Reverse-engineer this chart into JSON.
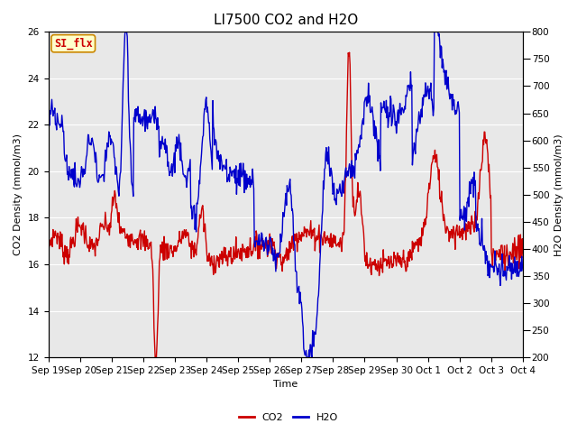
{
  "title": "LI7500 CO2 and H2O",
  "xlabel": "Time",
  "ylabel_left": "CO2 Density (mmol/m3)",
  "ylabel_right": "H2O Density (mmol/m3)",
  "ylim_left": [
    12,
    26
  ],
  "ylim_right": [
    200,
    800
  ],
  "yticks_left": [
    12,
    14,
    16,
    18,
    20,
    22,
    24,
    26
  ],
  "yticks_right": [
    200,
    250,
    300,
    350,
    400,
    450,
    500,
    550,
    600,
    650,
    700,
    750,
    800
  ],
  "xtick_labels": [
    "Sep 19",
    "Sep 20",
    "Sep 21",
    "Sep 22",
    "Sep 23",
    "Sep 24",
    "Sep 25",
    "Sep 26",
    "Sep 27",
    "Sep 28",
    "Sep 29",
    "Sep 30",
    "Oct 1",
    "Oct 2",
    "Oct 3",
    "Oct 4"
  ],
  "co2_color": "#cc0000",
  "h2o_color": "#0000cc",
  "plot_bg": "#e8e8e8",
  "fig_bg": "#ffffff",
  "grid_color": "#ffffff",
  "annotation_text": "SI_flx",
  "annotation_bg": "#ffffcc",
  "annotation_border": "#cc8800",
  "title_fontsize": 11,
  "axis_label_fontsize": 8,
  "tick_fontsize": 7.5,
  "legend_fontsize": 8,
  "line_width": 1.0
}
